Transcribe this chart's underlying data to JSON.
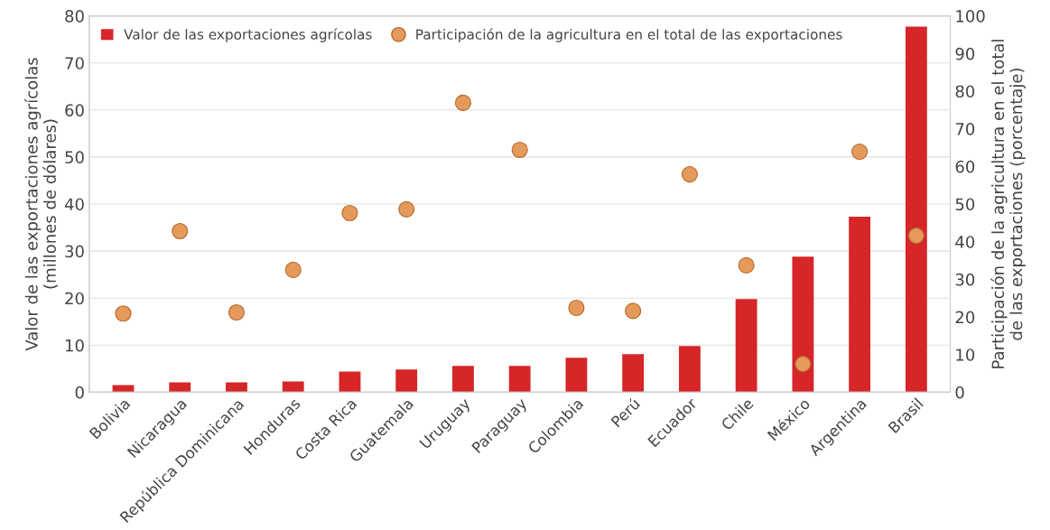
{
  "chart_data": {
    "type": "bar",
    "categories": [
      "Bolivia",
      "Nicaragua",
      "República Dominicana",
      "Honduras",
      "Costa Rica",
      "Guatemala",
      "Uruguay",
      "Paraguay",
      "Colombia",
      "Perú",
      "Ecuador",
      "Chile",
      "México",
      "Argentina",
      "Brasil"
    ],
    "series": [
      {
        "name": "Valor de las exportaciones agrícolas",
        "color": "#d62628",
        "values": [
          1.5,
          2.1,
          2.1,
          2.3,
          4.4,
          4.8,
          5.6,
          5.6,
          7.3,
          8.1,
          9.8,
          19.8,
          28.8,
          37.3,
          77.7
        ]
      },
      {
        "name": "Participación de la agricultura en el total de las exportaciones",
        "type": "scatter",
        "axis": "y2",
        "color": "#e39a5a",
        "values": [
          20.9,
          42.8,
          21.2,
          32.5,
          47.6,
          48.6,
          76.9,
          64.4,
          22.4,
          21.6,
          57.9,
          33.7,
          7.5,
          63.9,
          41.6
        ]
      }
    ],
    "ylabel": "Valor de las exportaciones agrícolas\n(millones de dólares)",
    "y2label": "Participación de la agricultura en el total\nde las exportaciones (porcentaje)",
    "ylim": [
      0,
      80
    ],
    "yticks": [
      0,
      10,
      20,
      30,
      40,
      50,
      60,
      70,
      80
    ],
    "y2lim": [
      0,
      100
    ],
    "y2ticks": [
      0,
      10,
      20,
      30,
      40,
      50,
      60,
      70,
      80,
      90,
      100
    ],
    "grid": "y",
    "legend": "top",
    "marker": "circle"
  }
}
